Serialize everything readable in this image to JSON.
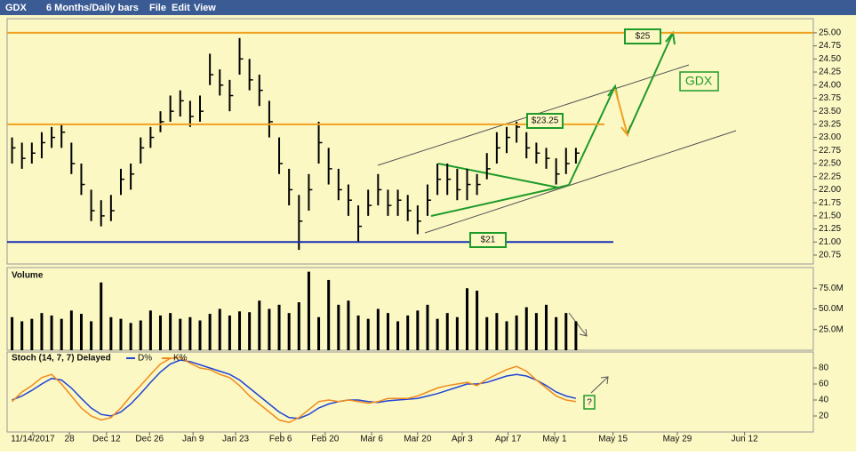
{
  "toolbar": {
    "symbol": "GDX",
    "period": "6 Months/Daily bars",
    "menus": [
      "File",
      "Edit",
      "View"
    ]
  },
  "chart_data": [
    {
      "type": "ohlc",
      "color": "#000000",
      "x": [
        1,
        3,
        5,
        7,
        9,
        11,
        13,
        15,
        17,
        19,
        21,
        23,
        25,
        27,
        29,
        31,
        33,
        35,
        37,
        39,
        41,
        43,
        45,
        47,
        49,
        51,
        53,
        55,
        57,
        59,
        61,
        63,
        65,
        67,
        69,
        71,
        73,
        75,
        77,
        79,
        81,
        83,
        85,
        87,
        89,
        91,
        93,
        95,
        97,
        99,
        101,
        103,
        105,
        107,
        109,
        111,
        113,
        115
      ],
      "high": [
        23.0,
        22.9,
        22.9,
        23.1,
        23.2,
        23.25,
        22.9,
        22.5,
        22.0,
        21.8,
        21.9,
        22.4,
        22.5,
        23.0,
        23.2,
        23.5,
        23.8,
        23.9,
        23.7,
        23.8,
        24.6,
        24.3,
        24.1,
        24.9,
        24.5,
        24.2,
        23.7,
        23.0,
        22.4,
        21.9,
        22.3,
        23.3,
        22.8,
        22.4,
        22.1,
        21.7,
        22.0,
        22.3,
        22.0,
        22.0,
        21.9,
        21.7,
        22.1,
        22.5,
        22.5,
        22.4,
        22.4,
        22.3,
        22.7,
        23.1,
        23.2,
        23.3,
        23.1,
        22.9,
        22.8,
        22.6,
        22.8,
        22.8
      ],
      "low": [
        22.5,
        22.4,
        22.5,
        22.6,
        22.8,
        22.8,
        22.3,
        21.9,
        21.4,
        21.3,
        21.4,
        21.9,
        22.0,
        22.5,
        22.8,
        23.1,
        23.3,
        23.4,
        23.2,
        23.3,
        24.0,
        23.8,
        23.5,
        24.2,
        23.9,
        23.6,
        23.0,
        22.3,
        21.7,
        20.85,
        21.6,
        22.5,
        22.1,
        21.8,
        21.5,
        21.0,
        21.5,
        21.7,
        21.5,
        21.5,
        21.4,
        21.15,
        21.5,
        21.9,
        21.9,
        21.8,
        21.8,
        21.9,
        22.2,
        22.5,
        22.7,
        22.9,
        22.6,
        22.5,
        22.4,
        22.1,
        22.3,
        22.5
      ],
      "close": [
        22.8,
        22.6,
        22.7,
        22.9,
        23.0,
        23.1,
        22.5,
        22.1,
        21.6,
        21.5,
        21.6,
        22.2,
        22.3,
        22.8,
        23.0,
        23.3,
        23.5,
        23.7,
        23.4,
        23.5,
        24.2,
        24.0,
        23.8,
        24.5,
        24.1,
        23.9,
        23.3,
        22.5,
        22.0,
        21.4,
        22.0,
        22.9,
        22.4,
        22.0,
        21.8,
        21.3,
        21.7,
        22.0,
        21.7,
        21.8,
        21.6,
        21.4,
        21.8,
        22.2,
        22.2,
        22.0,
        22.1,
        22.1,
        22.4,
        22.8,
        23.0,
        23.2,
        22.8,
        22.7,
        22.6,
        22.3,
        22.5,
        22.7
      ],
      "xlim": [
        0,
        163
      ],
      "ylim": [
        20.58,
        25.27
      ],
      "yticks": [
        {
          "value": 25,
          "label": "25.00"
        },
        24.75,
        {
          "value": 24.5,
          "label": "24.50"
        },
        24.25,
        {
          "value": 24,
          "label": "24.00"
        },
        23.75,
        {
          "value": 23.5,
          "label": "23.50"
        },
        23.25,
        {
          "value": 23,
          "label": "23.00"
        },
        22.75,
        {
          "value": 22.5,
          "label": "22.50"
        },
        22.25,
        {
          "value": 22,
          "label": "22.00"
        },
        21.75,
        {
          "value": 21.5,
          "label": "21.50"
        },
        21.25,
        {
          "value": 21,
          "label": "21.00"
        },
        20.75
      ],
      "levels": [
        {
          "value": 25,
          "label": "$25",
          "color": "#f0a020"
        },
        {
          "value": 23.25,
          "label": "$23.25",
          "color": "#f0a020"
        },
        {
          "value": 21,
          "label": "$21",
          "color": "#1a2fb0"
        }
      ],
      "annotation": "GDX"
    },
    {
      "type": "bar",
      "title": "Volume",
      "color": "#000000",
      "values": [
        40,
        35,
        38,
        45,
        42,
        38,
        48,
        44,
        35,
        82,
        40,
        38,
        33,
        36,
        48,
        42,
        45,
        38,
        40,
        36,
        44,
        50,
        42,
        47,
        46,
        60,
        50,
        55,
        45,
        58,
        95,
        40,
        85,
        55,
        60,
        42,
        38,
        50,
        45,
        35,
        42,
        48,
        55,
        38,
        45,
        40,
        75,
        72,
        40,
        45,
        35,
        42,
        52,
        45,
        55,
        40,
        45,
        35
      ],
      "xlim": [
        0,
        163
      ],
      "ylim": [
        0,
        100
      ],
      "yticks": [
        {
          "value": 75,
          "label": "75.0M"
        },
        {
          "value": 50,
          "label": "50.0M"
        },
        {
          "value": 25,
          "label": "25.0M"
        }
      ]
    },
    {
      "type": "line",
      "title": "Stoch (14, 7, 7) Delayed",
      "series": [
        {
          "name": "D%",
          "color": "#1f44d6",
          "values": [
            40,
            45,
            52,
            60,
            67,
            65,
            55,
            42,
            30,
            22,
            20,
            25,
            35,
            48,
            62,
            75,
            85,
            90,
            88,
            84,
            80,
            76,
            72,
            65,
            55,
            45,
            35,
            25,
            18,
            17,
            22,
            30,
            35,
            38,
            40,
            40,
            38,
            37,
            39,
            40,
            41,
            42,
            45,
            48,
            52,
            56,
            60,
            60,
            62,
            66,
            70,
            72,
            70,
            65,
            58,
            50,
            45,
            42
          ]
        },
        {
          "name": "K%",
          "color": "#f08a1c",
          "values": [
            38,
            50,
            58,
            68,
            72,
            60,
            45,
            30,
            20,
            15,
            18,
            30,
            45,
            58,
            72,
            85,
            92,
            93,
            86,
            80,
            78,
            72,
            68,
            58,
            45,
            35,
            25,
            15,
            12,
            18,
            28,
            38,
            40,
            38,
            40,
            38,
            36,
            38,
            42,
            42,
            42,
            45,
            50,
            55,
            58,
            60,
            62,
            58,
            66,
            72,
            78,
            82,
            76,
            65,
            55,
            45,
            40,
            38
          ]
        }
      ],
      "xlim": [
        0,
        163
      ],
      "ylim": [
        0,
        100
      ],
      "yticks": [
        80,
        60,
        40,
        20
      ],
      "xticks": [
        {
          "value": 5.2,
          "label": "11/14/2017"
        },
        {
          "value": 12.6,
          "label": "28"
        },
        {
          "value": 20.1,
          "label": "Dec 12"
        },
        {
          "value": 28.8,
          "label": "Dec 26"
        },
        {
          "value": 37.6,
          "label": "Jan 9"
        },
        {
          "value": 46.2,
          "label": "Jan 23"
        },
        {
          "value": 55.3,
          "label": "Feb 6"
        },
        {
          "value": 64.3,
          "label": "Feb 20"
        },
        {
          "value": 73.7,
          "label": "Mar 6"
        },
        {
          "value": 83.0,
          "label": "Mar 20"
        },
        {
          "value": 92.0,
          "label": "Apr 3"
        },
        {
          "value": 101.3,
          "label": "Apr 17"
        },
        {
          "value": 110.7,
          "label": "May 1"
        },
        {
          "value": 122.5,
          "label": "May 15"
        },
        {
          "value": 135.5,
          "label": "May 29"
        },
        {
          "value": 149.1,
          "label": "Jun 12"
        }
      ],
      "annotation": "?"
    }
  ]
}
